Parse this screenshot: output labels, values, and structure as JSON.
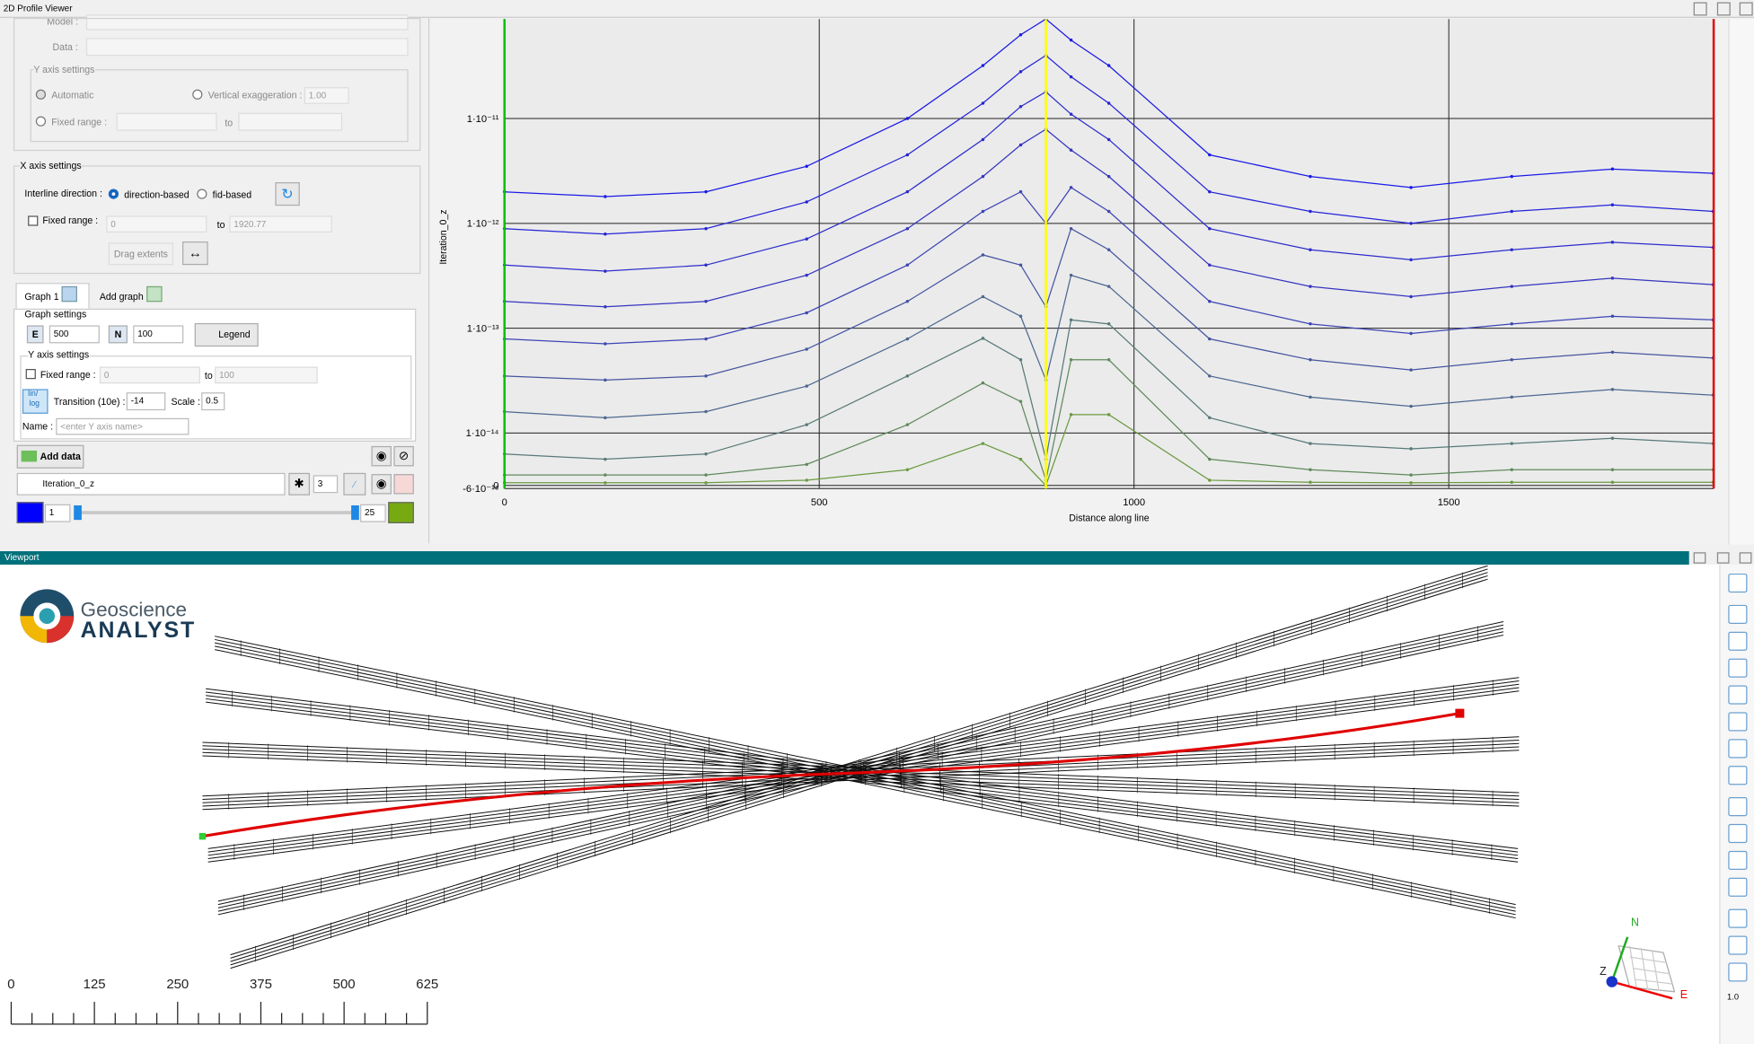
{
  "profile_viewer": {
    "title": "2D Profile Viewer",
    "model_label": "Model :",
    "data_label": "Data :",
    "y_axis_box": {
      "title": "Y axis settings",
      "automatic": "Automatic",
      "vertical_exaggeration": "Vertical exaggeration :",
      "vertical_exaggeration_value": "1.00",
      "fixed_range": "Fixed range :",
      "to": "to"
    },
    "x_axis_box": {
      "title": "X axis settings",
      "interline_direction": "Interline direction :",
      "direction_based": "direction-based",
      "fid_based": "fid-based",
      "fixed_range": "Fixed range :",
      "range_min": "0",
      "to": "to",
      "range_max": "1920.77",
      "drag_extents": "Drag extents"
    },
    "tabs": [
      "Graph 1",
      "Add graph"
    ],
    "graph_settings": {
      "title": "Graph settings",
      "e_label": "E",
      "e_value": "500",
      "n_label": "N",
      "n_value": "100",
      "legend": "Legend"
    },
    "graph_y_axis": {
      "title": "Y axis settings",
      "fixed_range": "Fixed range :",
      "range_min": "0",
      "to": "to",
      "range_max": "100",
      "lin_log": [
        "lin/",
        "log"
      ],
      "transition": "Transition (10e) :",
      "transition_value": "-14",
      "scale": "Scale :",
      "scale_value": "0.5",
      "name": "Name :",
      "name_placeholder": "<enter Y axis name>"
    },
    "data_controls": {
      "add_data": "Add data",
      "channel": "Iteration_0_z",
      "size": "3",
      "min_index": "1",
      "max_index": "25"
    }
  },
  "chart_data": {
    "type": "line",
    "y_label": "Iteration_0_z",
    "x_label": "Distance along line",
    "scale": "symlog",
    "linthresh": 1e-14,
    "linscale": 0.5,
    "grid": true,
    "xlim": [
      0,
      1920.77
    ],
    "xticks": [
      0,
      500,
      1000,
      1500
    ],
    "ylim": [
      -6e-16,
      8.9e-11
    ],
    "yticks": [
      {
        "value": -6e-16,
        "label": "-6·10⁻¹⁶"
      },
      0,
      {
        "value": 1e-14,
        "label": "1·10⁻¹⁴"
      },
      {
        "value": 1e-13,
        "label": "1·10⁻¹³"
      },
      {
        "value": 1e-12,
        "label": "1·10⁻¹²"
      },
      {
        "value": 1e-11,
        "label": "1·10⁻¹¹"
      }
    ],
    "x": [
      0,
      160,
      320,
      480,
      640,
      760,
      820,
      860,
      900,
      960,
      1120,
      1280,
      1440,
      1600,
      1760,
      1920
    ],
    "series": [
      {
        "color": "#1a1ae6",
        "values": [
          2e-12,
          1.8e-12,
          2e-12,
          3.5e-12,
          1e-11,
          3.2e-11,
          6.3e-11,
          8.9e-11,
          5.6e-11,
          3.2e-11,
          4.5e-12,
          2.8e-12,
          2.2e-12,
          2.8e-12,
          3.3e-12,
          3e-12
        ]
      },
      {
        "color": "#2323d8",
        "values": [
          8.9e-13,
          7.9e-13,
          8.9e-13,
          1.6e-12,
          4.5e-12,
          1.4e-11,
          2.8e-11,
          4e-11,
          2.5e-11,
          1.4e-11,
          2e-12,
          1.3e-12,
          1e-12,
          1.3e-12,
          1.5e-12,
          1.3e-12
        ]
      },
      {
        "color": "#2c2ccc",
        "values": [
          4e-13,
          3.5e-13,
          4e-13,
          7.1e-13,
          2e-12,
          6.3e-12,
          1.3e-11,
          1.8e-11,
          1.1e-11,
          6.3e-12,
          8.9e-13,
          5.6e-13,
          4.5e-13,
          5.6e-13,
          6.6e-13,
          5.9e-13
        ]
      },
      {
        "color": "#3535c0",
        "values": [
          1.8e-13,
          1.6e-13,
          1.8e-13,
          3.2e-13,
          8.9e-13,
          2.8e-12,
          5.6e-12,
          7.9e-12,
          5e-12,
          2.8e-12,
          4e-13,
          2.5e-13,
          2e-13,
          2.5e-13,
          3e-13,
          2.6e-13
        ]
      },
      {
        "color": "#3d45b4",
        "values": [
          7.9e-14,
          7.1e-14,
          7.9e-14,
          1.4e-13,
          4e-13,
          1.3e-12,
          2e-12,
          1e-12,
          2.2e-12,
          1.3e-12,
          1.8e-13,
          1.1e-13,
          8.9e-14,
          1.1e-13,
          1.3e-13,
          1.2e-13
        ]
      },
      {
        "color": "#4555a0",
        "values": [
          3.5e-14,
          3.2e-14,
          3.5e-14,
          6.3e-14,
          1.8e-13,
          5e-13,
          4e-13,
          1.6e-13,
          8.9e-13,
          5.6e-13,
          7.9e-14,
          5e-14,
          4e-14,
          5e-14,
          5.9e-14,
          5.2e-14
        ]
      },
      {
        "color": "#4d6890",
        "values": [
          1.6e-14,
          1.4e-14,
          1.6e-14,
          2.8e-14,
          7.9e-14,
          2e-13,
          1.3e-13,
          3.2e-14,
          3.2e-13,
          2.5e-13,
          3.5e-14,
          2.2e-14,
          1.8e-14,
          2.2e-14,
          2.6e-14,
          2.3e-14
        ]
      },
      {
        "color": "#587a78",
        "values": [
          6e-15,
          5e-15,
          6e-15,
          1.2e-14,
          3.5e-14,
          8e-14,
          5e-14,
          5e-15,
          1.2e-13,
          1.1e-13,
          1.4e-14,
          8e-15,
          7e-15,
          8e-15,
          9e-15,
          8e-15
        ]
      },
      {
        "color": "#608a5c",
        "values": [
          2e-15,
          2e-15,
          2e-15,
          4e-15,
          1.2e-14,
          3e-14,
          2e-14,
          1e-15,
          5e-14,
          5e-14,
          5e-15,
          3e-15,
          2e-15,
          3e-15,
          3e-15,
          3e-15
        ]
      },
      {
        "color": "#6a9a40",
        "values": [
          5e-16,
          5e-16,
          5e-16,
          1e-15,
          3e-15,
          8e-15,
          5e-15,
          0,
          1.5e-14,
          1.5e-14,
          1e-15,
          6e-16,
          5e-16,
          6e-16,
          6e-16,
          6e-16
        ]
      }
    ],
    "cursors": [
      {
        "x": 0,
        "color": "#00c000"
      },
      {
        "x": 860,
        "color": "#ffff00"
      },
      {
        "x": 1920.77,
        "color": "#e00000"
      }
    ]
  },
  "viewport": {
    "title": "Viewport",
    "logo_top": "Geoscience",
    "logo_bottom": "ANALYST",
    "scale_labels": [
      0,
      125,
      250,
      375,
      500,
      625
    ],
    "compass": [
      "N",
      "Z",
      "E"
    ],
    "zoom": "1.0"
  }
}
